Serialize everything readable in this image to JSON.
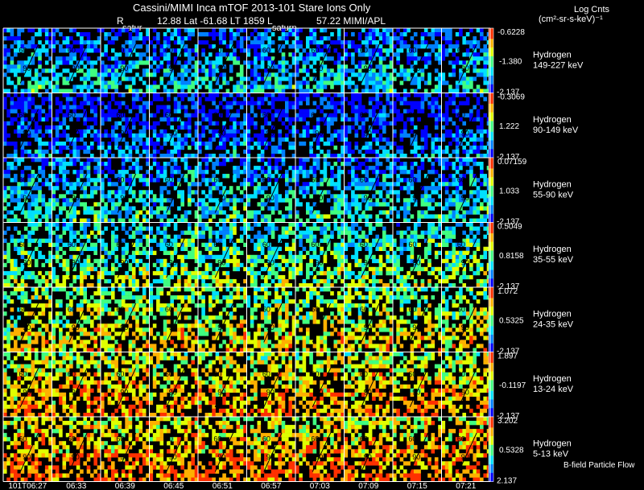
{
  "header": {
    "title_line": "Cassini/MIMI Inca mTOF  2013-101    Stare    Ions Only",
    "info_r": "R",
    "info_values": "12.88 Lat -61.68 LT 1859 L",
    "info_tail": "57.22  MIMI/APL",
    "saturn_label": "satur",
    "saturn_label_2": "saturn"
  },
  "colorbar": {
    "title": "Log Cnts",
    "units": "(cm²-sr-s-keV)⁻¹"
  },
  "footer": {
    "bfield_note": "B-field Particle Flow"
  },
  "chart_data": {
    "type": "heatmap",
    "title": "Cassini/MIMI Inca mTOF  2013-101    Stare    Ions Only",
    "colorscale": [
      "#0000ff",
      "#0080ff",
      "#00e0ff",
      "#40ff80",
      "#e0ff00",
      "#ffb000",
      "#ff3000"
    ],
    "time_labels": [
      "101T06:27",
      "06:33",
      "06:39",
      "06:45",
      "06:51",
      "06:57",
      "07:03",
      "07:09",
      "07:15",
      "07:21"
    ],
    "rows": [
      {
        "species": "Hydrogen",
        "energy": "149-227 keV",
        "cb_max": "-0.6228",
        "cb_mid": "-1.380",
        "cb_min": "-2.137",
        "mean_level": 0.25
      },
      {
        "species": "Hydrogen",
        "energy": "90-149 keV",
        "cb_max": "-0.3069",
        "cb_mid": "1.222",
        "cb_min": "-2.137",
        "mean_level": 0.12
      },
      {
        "species": "Hydrogen",
        "energy": "55-90 keV",
        "cb_max": "0.07159",
        "cb_mid": "1.033",
        "cb_min": "-2.137",
        "mean_level": 0.3
      },
      {
        "species": "Hydrogen",
        "energy": "35-55 keV",
        "cb_max": "0.5049",
        "cb_mid": "0.8158",
        "cb_min": "-2.137",
        "mean_level": 0.45
      },
      {
        "species": "Hydrogen",
        "energy": "24-35 keV",
        "cb_max": "1.072",
        "cb_mid": "0.5325",
        "cb_min": "-2.137",
        "mean_level": 0.6
      },
      {
        "species": "Hydrogen",
        "energy": "13-24 keV",
        "cb_max": "1.897",
        "cb_mid": "-0.1197",
        "cb_min": "-2.137",
        "mean_level": 0.7
      },
      {
        "species": "Hydrogen",
        "energy": "5-13 keV",
        "cb_max": "3.202",
        "cb_mid": "0.5328",
        "cb_min": "2.137",
        "mean_level": 0.75
      }
    ],
    "panel_labels": [
      "60",
      "90"
    ]
  }
}
